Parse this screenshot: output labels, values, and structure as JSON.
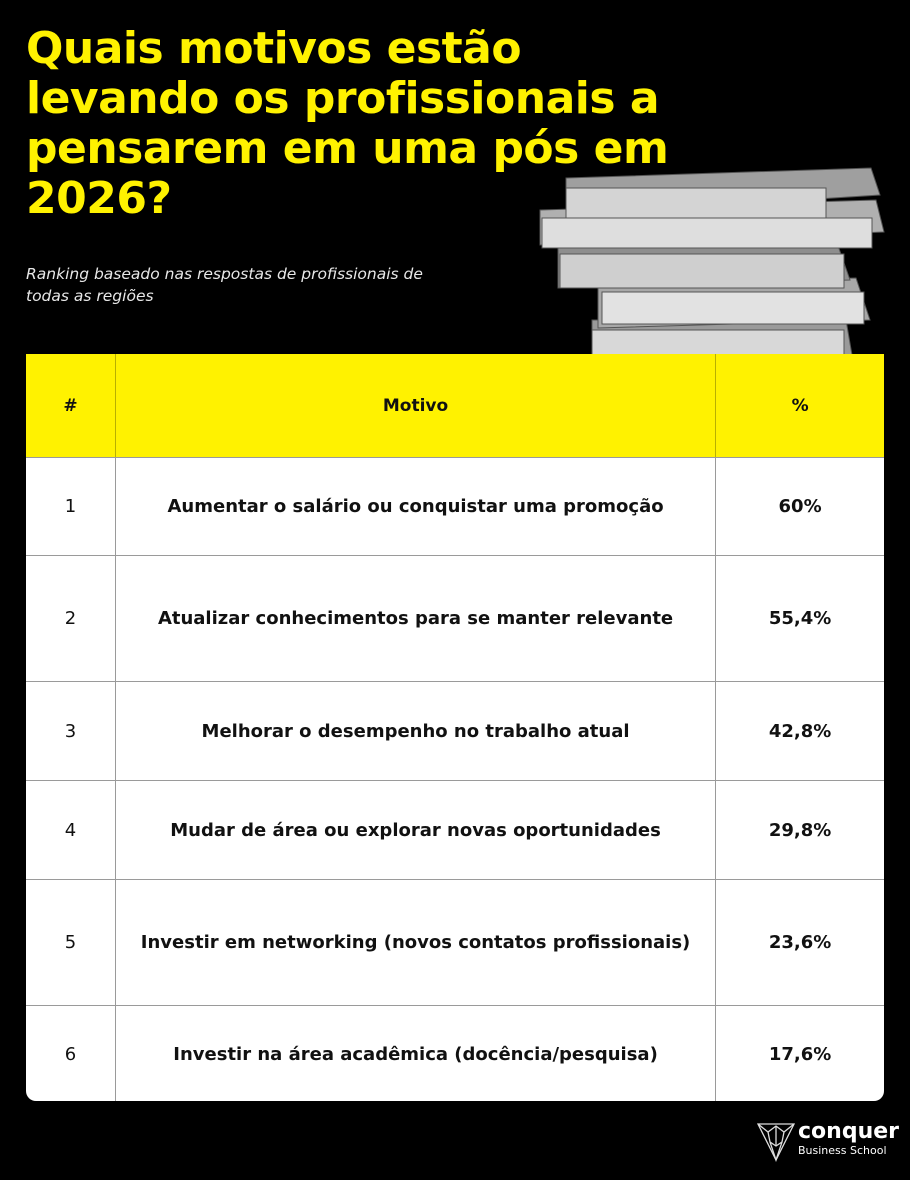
{
  "header": {
    "title": "Quais motivos estão levando os profissionais a pensarem em uma pós em 2026?",
    "subtitle": "Ranking baseado nas respostas de profissionais de todas as regiões"
  },
  "colors": {
    "accent": "#fff200",
    "background": "#000000",
    "table": "#ffffff"
  },
  "chart_data": {
    "type": "table",
    "columns": [
      "#",
      "Motivo",
      "%"
    ],
    "rows": [
      {
        "rank": "1",
        "motivo": "Aumentar o salário ou conquistar uma promoção",
        "pct": "60%"
      },
      {
        "rank": "2",
        "motivo": "Atualizar conhecimentos para se manter relevante",
        "pct": "55,4%"
      },
      {
        "rank": "3",
        "motivo": "Melhorar o desempenho no trabalho atual",
        "pct": "42,8%"
      },
      {
        "rank": "4",
        "motivo": "Mudar de área ou explorar novas oportunidades",
        "pct": "29,8%"
      },
      {
        "rank": "5",
        "motivo": "Investir em networking (novos contatos profissionais)",
        "pct": "23,6%"
      },
      {
        "rank": "6",
        "motivo": "Investir na área acadêmica (docência/pesquisa)",
        "pct": "17,6%"
      }
    ]
  },
  "logo": {
    "name": "conquer",
    "sub": "Business School",
    "icon": "geometric-triangle-icon"
  },
  "illustration": "stack-of-books-icon"
}
